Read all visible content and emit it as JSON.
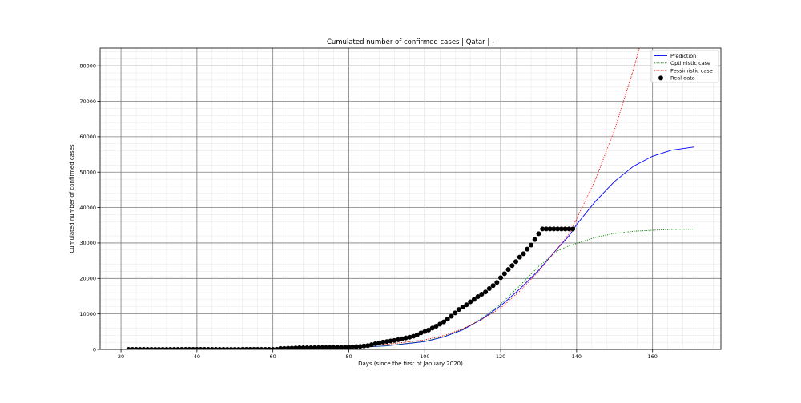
{
  "chart_data": {
    "type": "line",
    "title": "Cumulated number of confirmed cases | Qatar | -",
    "xlabel": "Days (since the first of January 2020)",
    "ylabel": "Cumulated number of confirmed cases",
    "xlim": [
      14.5,
      178
    ],
    "ylim": [
      0,
      85000
    ],
    "x_ticks": [
      20,
      40,
      60,
      80,
      100,
      120,
      140,
      160
    ],
    "y_ticks": [
      0,
      10000,
      20000,
      30000,
      40000,
      50000,
      60000,
      70000,
      80000
    ],
    "grid": true,
    "minor_grid": true,
    "legend_position": "top-right",
    "series": [
      {
        "name": "Prediction",
        "style": "line",
        "color": "#0000ff",
        "x": [
          22,
          60,
          80,
          90,
          100,
          105,
          110,
          115,
          120,
          125,
          130,
          135,
          138,
          140,
          145,
          150,
          155,
          160,
          165,
          171
        ],
        "y": [
          0,
          150,
          400,
          1000,
          2200,
          3500,
          5500,
          8500,
          12300,
          17000,
          22300,
          28500,
          32000,
          35200,
          41800,
          47400,
          51700,
          54500,
          56200,
          57100
        ]
      },
      {
        "name": "Optimistic case",
        "style": "dotted",
        "color": "#008000",
        "x": [
          22,
          60,
          80,
          90,
          100,
          105,
          110,
          115,
          120,
          125,
          130,
          135,
          138,
          140,
          145,
          150,
          155,
          160,
          165,
          171
        ],
        "y": [
          0,
          150,
          400,
          1000,
          2300,
          3600,
          5700,
          8700,
          12800,
          17900,
          23400,
          27800,
          29200,
          29900,
          31600,
          32700,
          33300,
          33600,
          33800,
          33900
        ]
      },
      {
        "name": "Pessimistic case",
        "style": "dotted",
        "color": "#ff0000",
        "x": [
          22,
          60,
          80,
          90,
          100,
          105,
          110,
          115,
          120,
          125,
          130,
          135,
          138,
          140,
          145,
          150,
          155,
          156.5
        ],
        "y": [
          0,
          200,
          700,
          1400,
          2700,
          3900,
          5800,
          8400,
          11700,
          16400,
          22000,
          28500,
          32500,
          36800,
          48000,
          62000,
          79000,
          85000
        ]
      },
      {
        "name": "Real data",
        "style": "scatter",
        "color": "#000000",
        "x": [
          22,
          23,
          24,
          25,
          26,
          27,
          28,
          29,
          30,
          31,
          32,
          33,
          34,
          35,
          36,
          37,
          38,
          39,
          40,
          41,
          42,
          43,
          44,
          45,
          46,
          47,
          48,
          49,
          50,
          51,
          52,
          53,
          54,
          55,
          56,
          57,
          58,
          59,
          60,
          61,
          62,
          63,
          64,
          65,
          66,
          67,
          68,
          69,
          70,
          71,
          72,
          73,
          74,
          75,
          76,
          77,
          78,
          79,
          80,
          81,
          82,
          83,
          84,
          85,
          86,
          87,
          88,
          89,
          90,
          91,
          92,
          93,
          94,
          95,
          96,
          97,
          98,
          99,
          100,
          101,
          102,
          103,
          104,
          105,
          106,
          107,
          108,
          109,
          110,
          111,
          112,
          113,
          114,
          115,
          116,
          117,
          118,
          119,
          120,
          121,
          122,
          123,
          124,
          125,
          126,
          127,
          128,
          129,
          130,
          131,
          132,
          133,
          134,
          135,
          136,
          137,
          138,
          139
        ],
        "y": [
          0,
          0,
          0,
          0,
          0,
          0,
          0,
          0,
          0,
          0,
          0,
          0,
          0,
          0,
          0,
          0,
          0,
          0,
          0,
          0,
          0,
          0,
          0,
          0,
          0,
          0,
          0,
          0,
          0,
          0,
          0,
          0,
          0,
          0,
          0,
          0,
          0,
          0,
          7,
          15,
          262,
          262,
          320,
          337,
          401,
          439,
          442,
          452,
          460,
          470,
          481,
          494,
          501,
          526,
          537,
          549,
          562,
          590,
          634,
          693,
          781,
          835,
          949,
          1075,
          1325,
          1604,
          1832,
          2057,
          2210,
          2376,
          2512,
          2728,
          2979,
          3231,
          3428,
          3711,
          4103,
          4663,
          5008,
          5448,
          6015,
          6533,
          7141,
          7764,
          8525,
          9358,
          10287,
          11244,
          11921,
          12564,
          13409,
          14096,
          14872,
          15551,
          16191,
          17142,
          17972,
          18890,
          20201,
          21331,
          22520,
          23623,
          24753,
          26007,
          26978,
          28272,
          29425,
          30972,
          32604,
          33969,
          33969,
          33969,
          33969,
          33969,
          33969,
          33969,
          33969,
          33969
        ]
      }
    ]
  }
}
